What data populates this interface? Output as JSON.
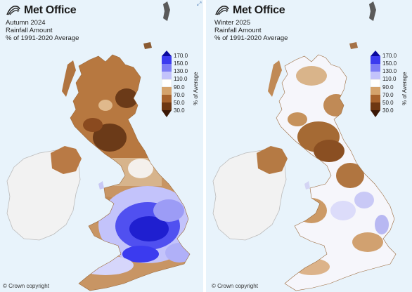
{
  "panels": [
    {
      "brand": "Met Office",
      "title_lines": [
        "Autumn 2024",
        "Rainfall Amount",
        "% of 1991-2020 Average"
      ],
      "copyright": "© Crown copyright"
    },
    {
      "brand": "Met Office",
      "title_lines": [
        "Winter 2025",
        "Rainfall Amount",
        "% of 1991-2020 Average"
      ],
      "copyright": "© Crown copyright"
    }
  ],
  "legend": {
    "title": "% of Average",
    "ticks": [
      "170.0",
      "150.0",
      "130.0",
      "110.0",
      "90.0",
      "70.0",
      "50.0",
      "30.0"
    ],
    "colors": [
      "#0a0a9e",
      "#3b3bef",
      "#7d7df5",
      "#c3c3fb",
      "#ffffff",
      "#d4a26b",
      "#a7622c",
      "#6e3712",
      "#3a1806"
    ]
  },
  "colors": {
    "background": "#e8f3fb",
    "land_neutral": "#f8f8fb",
    "ireland": "#f2f2f2"
  },
  "icons": [
    "met-office-logo-icon",
    "expand-icon",
    "copyright-icon"
  ]
}
